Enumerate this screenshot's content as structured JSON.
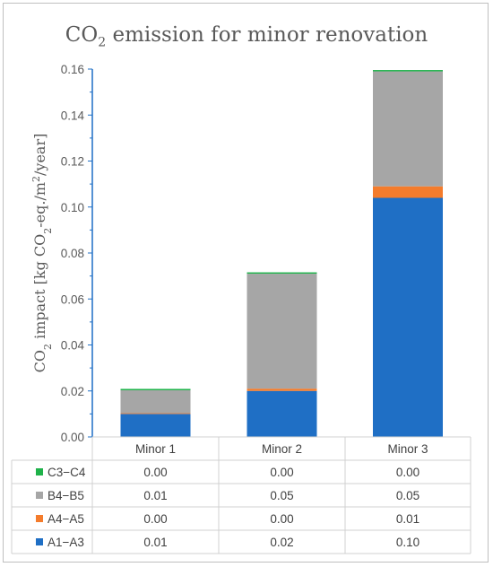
{
  "title": {
    "prefix": "CO",
    "subscript": "2",
    "suffix": " emission for minor renovation"
  },
  "ylabel": {
    "parts": [
      {
        "text": "CO",
        "sub": false,
        "sup": false
      },
      {
        "text": "2",
        "sub": true,
        "sup": false
      },
      {
        "text": " impact [kg CO",
        "sub": false,
        "sup": false
      },
      {
        "text": "2",
        "sub": true,
        "sup": false
      },
      {
        "text": "-eq./m",
        "sub": false,
        "sup": false
      },
      {
        "text": "2",
        "sub": false,
        "sup": true
      },
      {
        "text": "/year]",
        "sub": false,
        "sup": false
      }
    ]
  },
  "colors": {
    "A1-A3": "#1f6fc5",
    "A4-A5": "#f47c2c",
    "B4-B5": "#a6a6a6",
    "C3-C4": "#1fb24a",
    "axis": "#1f6fc5",
    "grid_border": "#d0d0d0"
  },
  "chart_data": {
    "type": "bar",
    "stacked": true,
    "title": "CO2 emission for minor renovation",
    "ylabel": "CO2 impact [kg CO2-eq./m2/year]",
    "ylim": [
      0,
      0.16
    ],
    "yticks": [
      "0.00",
      "0.02",
      "0.04",
      "0.06",
      "0.08",
      "0.10",
      "0.12",
      "0.14",
      "0.16"
    ],
    "categories": [
      "Minor 1",
      "Minor 2",
      "Minor 3"
    ],
    "series": [
      {
        "name": "A1−A3",
        "key": "A1-A3",
        "values": [
          0.01,
          0.02,
          0.104
        ],
        "labels": [
          "0.01",
          "0.02",
          "0.10"
        ]
      },
      {
        "name": "A4−A5",
        "key": "A4-A5",
        "values": [
          0.0003,
          0.001,
          0.005
        ],
        "labels": [
          "0.00",
          "0.00",
          "0.01"
        ]
      },
      {
        "name": "B4−B5",
        "key": "B4-B5",
        "values": [
          0.01,
          0.05,
          0.05
        ],
        "labels": [
          "0.01",
          "0.05",
          "0.05"
        ]
      },
      {
        "name": "C3−C4",
        "key": "C3-C4",
        "values": [
          0.0002,
          0.0003,
          0.0005
        ],
        "labels": [
          "0.00",
          "0.00",
          "0.00"
        ]
      }
    ],
    "table_row_order": [
      "C3-C4",
      "B4-B5",
      "A4-A5",
      "A1-A3"
    ],
    "grid": false,
    "legend": "data-table"
  }
}
